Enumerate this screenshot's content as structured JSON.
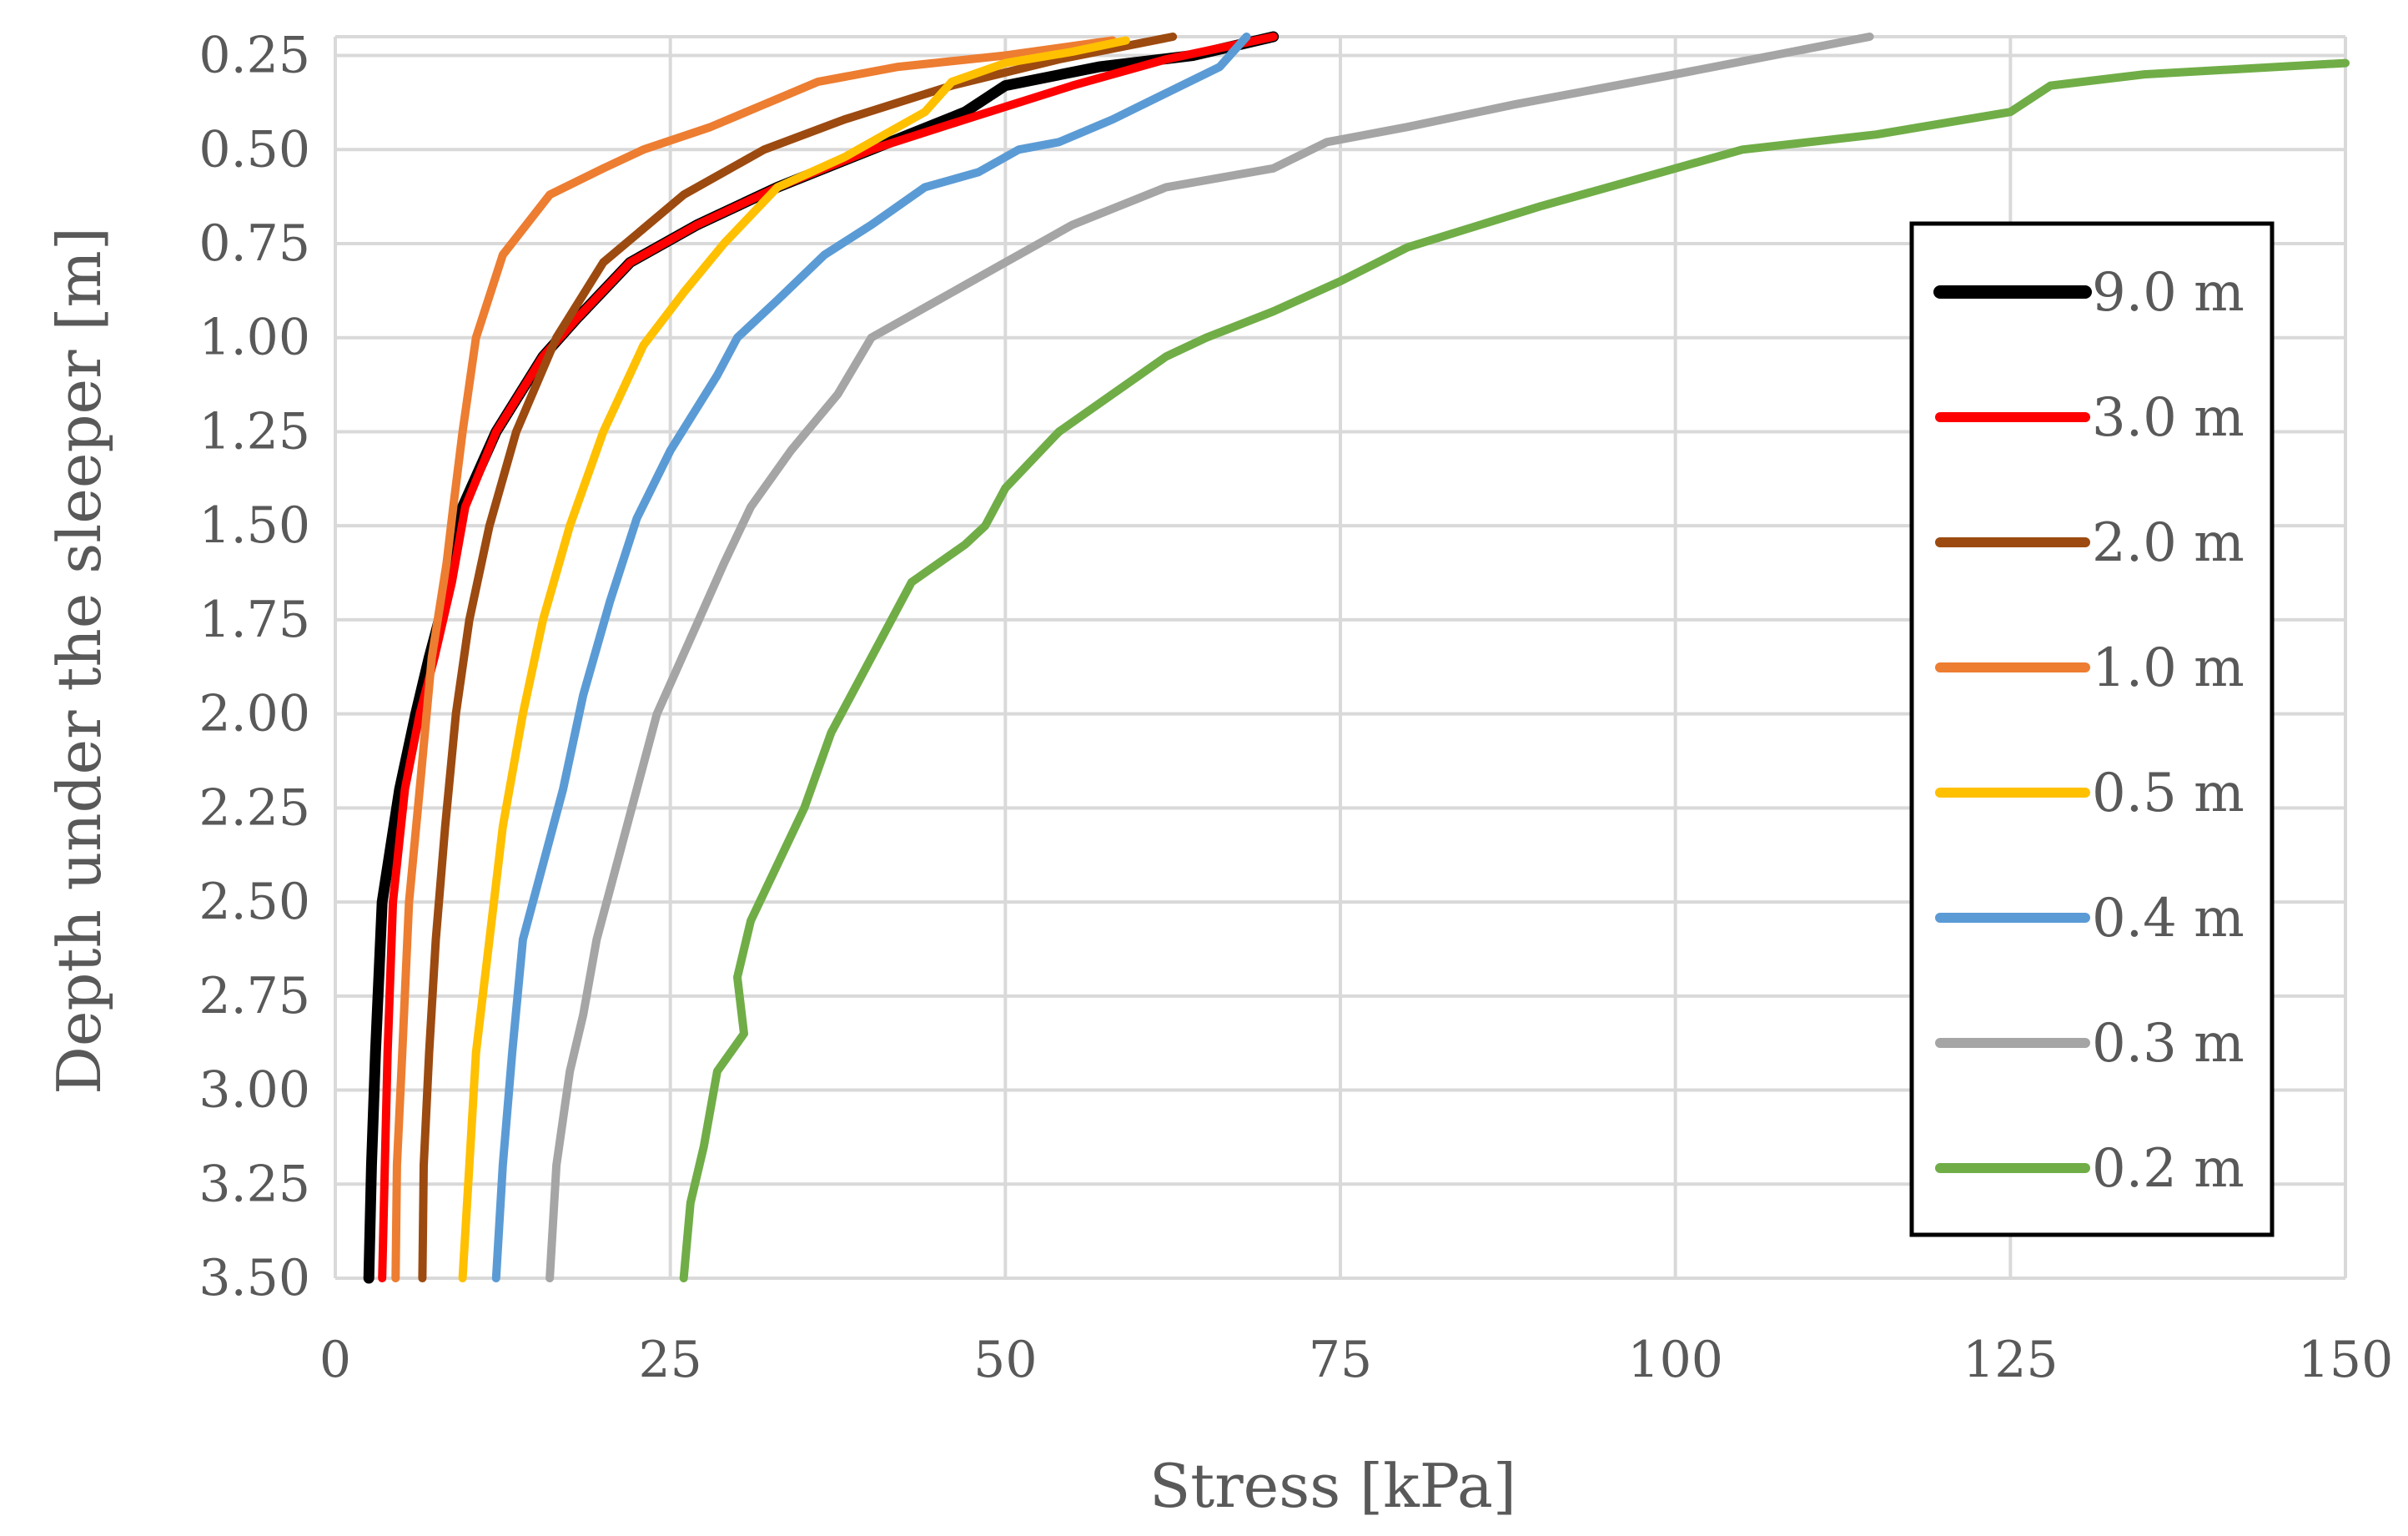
{
  "chart_data": {
    "type": "line",
    "title": "",
    "xlabel": "Stress [kPa]",
    "ylabel": "Depth under the sleeper [m]",
    "xlim": [
      0,
      150
    ],
    "ylim": [
      0.2,
      3.5
    ],
    "y_inverted": true,
    "x_ticks": [
      0,
      25,
      50,
      75,
      100,
      125,
      150
    ],
    "y_ticks": [
      0.25,
      0.5,
      0.75,
      1.0,
      1.25,
      1.5,
      1.75,
      2.0,
      2.25,
      2.5,
      2.75,
      3.0,
      3.25,
      3.5
    ],
    "x_tick_labels": [
      "0",
      "25",
      "50",
      "75",
      "100",
      "125",
      "150"
    ],
    "y_tick_labels": [
      "0.25",
      "0.50",
      "0.75",
      "1.00",
      "1.25",
      "1.50",
      "1.75",
      "2.00",
      "2.25",
      "2.50",
      "2.75",
      "3.00",
      "3.25",
      "3.50"
    ],
    "grid": true,
    "legend_position": "right",
    "series": [
      {
        "name": "9.0 m",
        "color": "#000000",
        "points": [
          [
            2.5,
            3.5
          ],
          [
            2.7,
            3.2
          ],
          [
            3.0,
            2.9
          ],
          [
            3.5,
            2.5
          ],
          [
            4.8,
            2.2
          ],
          [
            6.0,
            2.0
          ],
          [
            7.0,
            1.85
          ],
          [
            8.5,
            1.65
          ],
          [
            9.5,
            1.45
          ],
          [
            12.0,
            1.25
          ],
          [
            15.5,
            1.05
          ],
          [
            18.0,
            0.95
          ],
          [
            22.0,
            0.8
          ],
          [
            27.0,
            0.7
          ],
          [
            33.0,
            0.6
          ],
          [
            40.0,
            0.5
          ],
          [
            47.0,
            0.4
          ],
          [
            50.0,
            0.33
          ],
          [
            57.0,
            0.28
          ],
          [
            64.0,
            0.25
          ],
          [
            70.0,
            0.2
          ]
        ]
      },
      {
        "name": "3.0 m",
        "color": "#ff0000",
        "points": [
          [
            3.5,
            3.5
          ],
          [
            3.7,
            3.2
          ],
          [
            3.9,
            2.9
          ],
          [
            4.3,
            2.5
          ],
          [
            5.2,
            2.2
          ],
          [
            6.3,
            2.0
          ],
          [
            7.4,
            1.85
          ],
          [
            8.7,
            1.65
          ],
          [
            9.7,
            1.45
          ],
          [
            12.0,
            1.25
          ],
          [
            15.5,
            1.05
          ],
          [
            18.0,
            0.95
          ],
          [
            22.0,
            0.8
          ],
          [
            27.0,
            0.7
          ],
          [
            33.0,
            0.6
          ],
          [
            40.0,
            0.5
          ],
          [
            47.0,
            0.42
          ],
          [
            55.0,
            0.33
          ],
          [
            62.0,
            0.26
          ],
          [
            70.0,
            0.2
          ]
        ]
      },
      {
        "name": "2.0 m",
        "color": "#9c4a10",
        "points": [
          [
            6.5,
            3.5
          ],
          [
            6.6,
            3.2
          ],
          [
            7.0,
            2.9
          ],
          [
            7.5,
            2.6
          ],
          [
            8.2,
            2.3
          ],
          [
            9.0,
            2.0
          ],
          [
            10.0,
            1.75
          ],
          [
            11.5,
            1.5
          ],
          [
            13.5,
            1.25
          ],
          [
            16.5,
            1.0
          ],
          [
            20.0,
            0.8
          ],
          [
            26.0,
            0.62
          ],
          [
            32.0,
            0.5
          ],
          [
            38.0,
            0.42
          ],
          [
            46.0,
            0.33
          ],
          [
            54.0,
            0.26
          ],
          [
            62.5,
            0.2
          ]
        ]
      },
      {
        "name": "1.0 m",
        "color": "#ed7d31",
        "points": [
          [
            4.5,
            3.5
          ],
          [
            4.6,
            3.2
          ],
          [
            5.0,
            2.9
          ],
          [
            5.5,
            2.5
          ],
          [
            6.3,
            2.2
          ],
          [
            7.2,
            1.85
          ],
          [
            8.3,
            1.6
          ],
          [
            8.8,
            1.45
          ],
          [
            9.5,
            1.25
          ],
          [
            10.5,
            1.0
          ],
          [
            12.5,
            0.78
          ],
          [
            16.0,
            0.62
          ],
          [
            20.0,
            0.55
          ],
          [
            23.0,
            0.5
          ],
          [
            28.0,
            0.44
          ],
          [
            32.0,
            0.38
          ],
          [
            36.0,
            0.32
          ],
          [
            42.0,
            0.28
          ],
          [
            50.0,
            0.25
          ],
          [
            58.0,
            0.21
          ]
        ]
      },
      {
        "name": "0.5 m",
        "color": "#ffc000",
        "points": [
          [
            9.5,
            3.5
          ],
          [
            10.0,
            3.2
          ],
          [
            10.5,
            2.9
          ],
          [
            11.5,
            2.6
          ],
          [
            12.5,
            2.3
          ],
          [
            14.0,
            2.0
          ],
          [
            15.5,
            1.75
          ],
          [
            17.5,
            1.5
          ],
          [
            20.0,
            1.25
          ],
          [
            23.0,
            1.02
          ],
          [
            26.0,
            0.88
          ],
          [
            29.0,
            0.75
          ],
          [
            33.0,
            0.6
          ],
          [
            38.0,
            0.52
          ],
          [
            41.0,
            0.46
          ],
          [
            44.0,
            0.4
          ],
          [
            46.0,
            0.32
          ],
          [
            50.0,
            0.27
          ],
          [
            55.0,
            0.24
          ],
          [
            59.0,
            0.21
          ]
        ]
      },
      {
        "name": "0.4 m",
        "color": "#5b9bd5",
        "points": [
          [
            12.0,
            3.5
          ],
          [
            12.5,
            3.2
          ],
          [
            13.2,
            2.9
          ],
          [
            14.0,
            2.6
          ],
          [
            15.5,
            2.4
          ],
          [
            17.0,
            2.2
          ],
          [
            18.5,
            1.95
          ],
          [
            20.5,
            1.7
          ],
          [
            22.5,
            1.48
          ],
          [
            25.0,
            1.3
          ],
          [
            28.5,
            1.1
          ],
          [
            30.0,
            1.0
          ],
          [
            33.0,
            0.9
          ],
          [
            36.5,
            0.78
          ],
          [
            40.0,
            0.7
          ],
          [
            44.0,
            0.6
          ],
          [
            48.0,
            0.56
          ],
          [
            51.0,
            0.5
          ],
          [
            54.0,
            0.48
          ],
          [
            58.0,
            0.42
          ],
          [
            62.0,
            0.35
          ],
          [
            66.0,
            0.28
          ],
          [
            68.0,
            0.2
          ]
        ]
      },
      {
        "name": "0.3 m",
        "color": "#a5a5a5",
        "points": [
          [
            16.0,
            3.5
          ],
          [
            16.5,
            3.2
          ],
          [
            17.5,
            2.95
          ],
          [
            18.5,
            2.8
          ],
          [
            19.5,
            2.6
          ],
          [
            21.0,
            2.4
          ],
          [
            22.5,
            2.2
          ],
          [
            24.0,
            2.0
          ],
          [
            26.5,
            1.8
          ],
          [
            29.0,
            1.6
          ],
          [
            31.0,
            1.45
          ],
          [
            34.0,
            1.3
          ],
          [
            37.5,
            1.15
          ],
          [
            40.0,
            1.0
          ],
          [
            45.0,
            0.9
          ],
          [
            50.0,
            0.8
          ],
          [
            55.0,
            0.7
          ],
          [
            62.0,
            0.6
          ],
          [
            70.0,
            0.55
          ],
          [
            74.0,
            0.48
          ],
          [
            80.0,
            0.44
          ],
          [
            88.0,
            0.38
          ],
          [
            100.0,
            0.3
          ],
          [
            114.5,
            0.2
          ]
        ]
      },
      {
        "name": "0.2 m",
        "color": "#70ad47",
        "points": [
          [
            26.0,
            3.5
          ],
          [
            26.5,
            3.3
          ],
          [
            27.5,
            3.15
          ],
          [
            28.5,
            2.95
          ],
          [
            30.5,
            2.85
          ],
          [
            30.0,
            2.7
          ],
          [
            31.0,
            2.55
          ],
          [
            33.0,
            2.4
          ],
          [
            35.0,
            2.25
          ],
          [
            37.0,
            2.05
          ],
          [
            40.0,
            1.85
          ],
          [
            43.0,
            1.65
          ],
          [
            47.0,
            1.55
          ],
          [
            48.5,
            1.5
          ],
          [
            50.0,
            1.4
          ],
          [
            54.0,
            1.25
          ],
          [
            58.0,
            1.15
          ],
          [
            62.0,
            1.05
          ],
          [
            65.0,
            1.0
          ],
          [
            70.0,
            0.93
          ],
          [
            75.0,
            0.85
          ],
          [
            80.0,
            0.76
          ],
          [
            90.0,
            0.65
          ],
          [
            100.0,
            0.55
          ],
          [
            105.0,
            0.5
          ],
          [
            115.0,
            0.46
          ],
          [
            125.0,
            0.4
          ],
          [
            128.0,
            0.33
          ],
          [
            135.0,
            0.3
          ],
          [
            150.0,
            0.27
          ]
        ]
      }
    ]
  }
}
